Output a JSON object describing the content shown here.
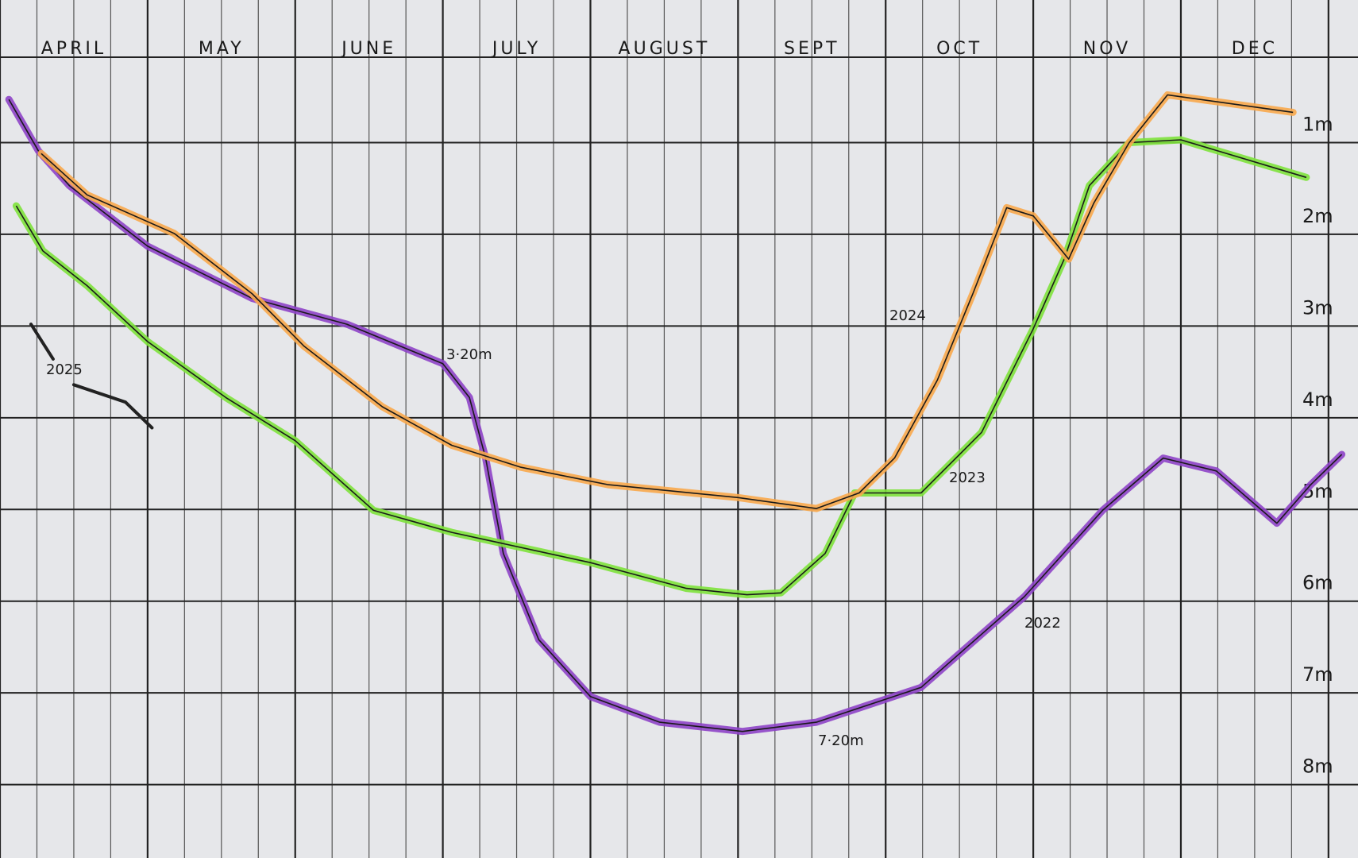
{
  "chart_data": {
    "type": "line",
    "xlim": [
      0,
      9.2
    ],
    "ylim": [
      0,
      8.8
    ],
    "y_inverted": true,
    "grid": true,
    "xticks": [
      {
        "value": 0.5,
        "label": "APRIL"
      },
      {
        "value": 1.5,
        "label": "MAY"
      },
      {
        "value": 2.5,
        "label": "JUNE"
      },
      {
        "value": 3.5,
        "label": "JULY"
      },
      {
        "value": 4.5,
        "label": "AUGUST"
      },
      {
        "value": 5.5,
        "label": "SEPT"
      },
      {
        "value": 6.5,
        "label": "OCT"
      },
      {
        "value": 7.5,
        "label": "NOV"
      },
      {
        "value": 8.5,
        "label": "DEC"
      }
    ],
    "yticks": [
      {
        "value": 1,
        "label": "1m"
      },
      {
        "value": 2,
        "label": "2m"
      },
      {
        "value": 3,
        "label": "3m"
      },
      {
        "value": 4,
        "label": "4m"
      },
      {
        "value": 5,
        "label": "5m"
      },
      {
        "value": 6,
        "label": "6m"
      },
      {
        "value": 7,
        "label": "7m"
      },
      {
        "value": 8,
        "label": "8m"
      }
    ],
    "series": [
      {
        "name": "2022",
        "color": "#8e44c8",
        "x": [
          0.06,
          0.26,
          0.47,
          1.0,
          1.71,
          2.35,
          3.0,
          3.18,
          3.29,
          3.41,
          3.65,
          4.0,
          4.47,
          5.03,
          5.53,
          6.24,
          6.94,
          7.47,
          7.88,
          8.24,
          8.65,
          8.88,
          9.09
        ],
        "values": [
          0.53,
          1.09,
          1.47,
          2.13,
          2.7,
          2.98,
          3.41,
          3.78,
          4.44,
          5.48,
          6.42,
          7.04,
          7.32,
          7.42,
          7.32,
          6.94,
          5.95,
          5.01,
          4.44,
          4.58,
          5.15,
          4.73,
          4.4
        ]
      },
      {
        "name": "2023",
        "color": "#7ee23c",
        "x": [
          0.11,
          0.29,
          0.59,
          1.0,
          1.53,
          2.0,
          2.53,
          3.06,
          4.0,
          4.65,
          5.06,
          5.29,
          5.59,
          5.79,
          6.24,
          6.65,
          7.0,
          7.21,
          7.38,
          7.65,
          8.0,
          8.85
        ],
        "values": [
          1.69,
          2.18,
          2.56,
          3.17,
          3.78,
          4.25,
          5.01,
          5.25,
          5.58,
          5.86,
          5.93,
          5.91,
          5.48,
          4.82,
          4.82,
          4.16,
          3.03,
          2.27,
          1.47,
          1.0,
          0.97,
          1.38
        ]
      },
      {
        "name": "2024",
        "color": "#f8a94c",
        "x": [
          0.28,
          0.59,
          1.18,
          1.71,
          2.06,
          2.59,
          3.06,
          3.53,
          4.12,
          5.0,
          5.53,
          5.82,
          6.06,
          6.35,
          6.59,
          6.82,
          7.0,
          7.24,
          7.41,
          7.65,
          7.91,
          8.76
        ],
        "values": [
          1.12,
          1.57,
          1.99,
          2.65,
          3.22,
          3.88,
          4.3,
          4.54,
          4.73,
          4.87,
          4.99,
          4.82,
          4.44,
          3.59,
          2.65,
          1.71,
          1.8,
          2.27,
          1.66,
          1.0,
          0.48,
          0.67
        ]
      },
      {
        "name": "2025",
        "color": "#222222",
        "x": [
          0.21,
          0.36,
          0.43,
          0.5,
          0.85,
          1.03
        ],
        "values": [
          2.98,
          3.36,
          null,
          3.64,
          3.83,
          4.11
        ]
      }
    ],
    "annotations": [
      "3·20m",
      "7·20m"
    ]
  }
}
